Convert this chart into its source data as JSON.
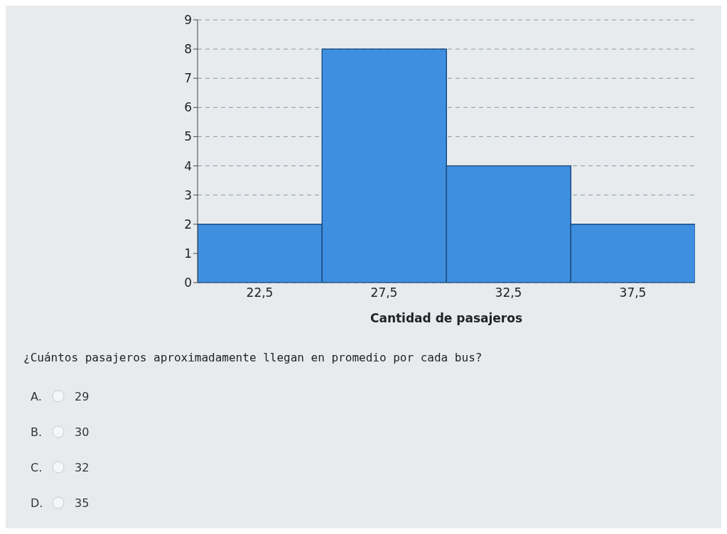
{
  "chart_data": {
    "type": "histogram",
    "xlabel": "Cantidad de pasajeros",
    "bins": [
      20,
      25,
      30,
      35,
      40
    ],
    "values": [
      2,
      8,
      4,
      2
    ],
    "color": "#3f8fe0",
    "xlim": [
      20,
      40
    ],
    "xticks": [
      {
        "value": 22.5,
        "label": "22,5"
      },
      {
        "value": 27.5,
        "label": "27,5"
      },
      {
        "value": 32.5,
        "label": "32,5"
      },
      {
        "value": 37.5,
        "label": "37,5"
      }
    ],
    "ylim": [
      0,
      9
    ],
    "yticks": [
      0,
      1,
      2,
      3,
      4,
      5,
      6,
      7,
      8,
      9
    ],
    "grid": "y",
    "annotations": [
      "¿Cuántos pasajeros aproximadamente llegan en promedio por cada bus?",
      "A.",
      "29",
      "B.",
      "30",
      "C.",
      "32",
      "D.",
      "35"
    ]
  }
}
